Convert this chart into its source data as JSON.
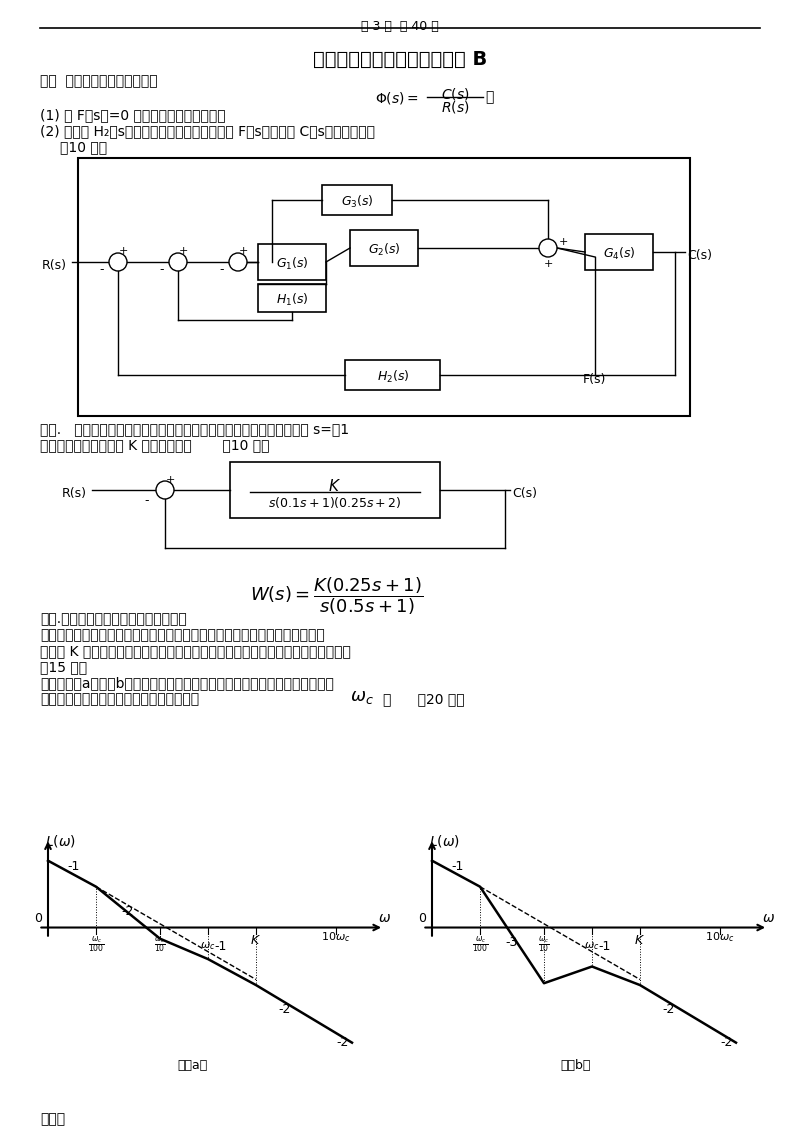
{
  "bg_color": "#ffffff",
  "page_header": "第 3 页  共 40 页",
  "title": "《自动控制原理》试卷（一） B",
  "sec1": "一、  控制系统的结构如下图。",
  "p1": "(1) 当 F（s）=0 时，求系统闭环传递函数",
  "p2": "(2) 系统中 H₂（s）应满足什么关系，能使干扰 F（s）对输出 C（s）没有影响？",
  "p3": "（10 分）",
  "sec2_a": "二、.   设某控制系统方框图如图所示，要求闭环系统的特征値全部位于 s=－1",
  "sec2_b": "垂线之左，试确定参数 K 的取値范围。       （10 分）",
  "sec3_a": "三、.一单位负反馈系统的开环传递函为",
  "sec3_b": "位阶跃函数的响应为一振幅按指数规律衰减的简谐振荡时间函数，试用根轨迹",
  "sec3_c": "法确定 K 値范围（要求首先绘制根轨迹，求出并在图上标注主要的特征点参数）。",
  "sec3_d": "（15 分）",
  "sec4_a": "四、如图（a）和（b）所示是两个单位反馈系统的开环对数幅频特性，它们都",
  "sec4_b": "是最小相位的，且开环截止频率相等，均为",
  "sec4_c": "。      （20 分）",
  "yaoqiu": "要求："
}
